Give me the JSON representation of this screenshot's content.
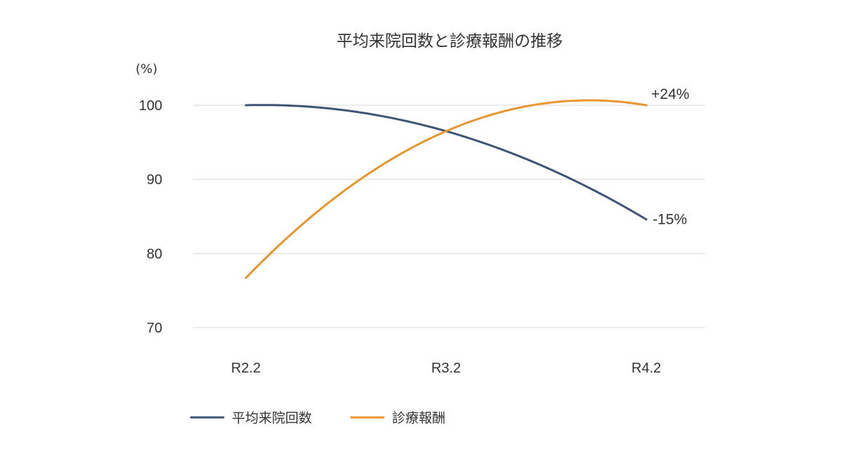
{
  "chart_data": {
    "type": "line",
    "title": "平均来院回数と診療報酬の推移",
    "unit_label": "(%)",
    "categories": [
      "R2.2",
      "R3.2",
      "R4.2"
    ],
    "x": [
      "R2.2",
      "R3.2",
      "R4.2"
    ],
    "ylim": [
      70,
      100
    ],
    "yticks": [
      70,
      80,
      90,
      100
    ],
    "y_tick_labels": [
      "70",
      "80",
      "90",
      "100"
    ],
    "grid": true,
    "legend_position": "bottom",
    "smooth": true,
    "series": [
      {
        "name": "平均来院回数",
        "color": "#3d5475",
        "values": [
          100,
          96.5,
          84.6
        ],
        "end_label": "-15%"
      },
      {
        "name": "診療報酬",
        "color": "#e8952f",
        "values": [
          76.7,
          96.5,
          100
        ],
        "end_label": "+24%"
      }
    ]
  }
}
